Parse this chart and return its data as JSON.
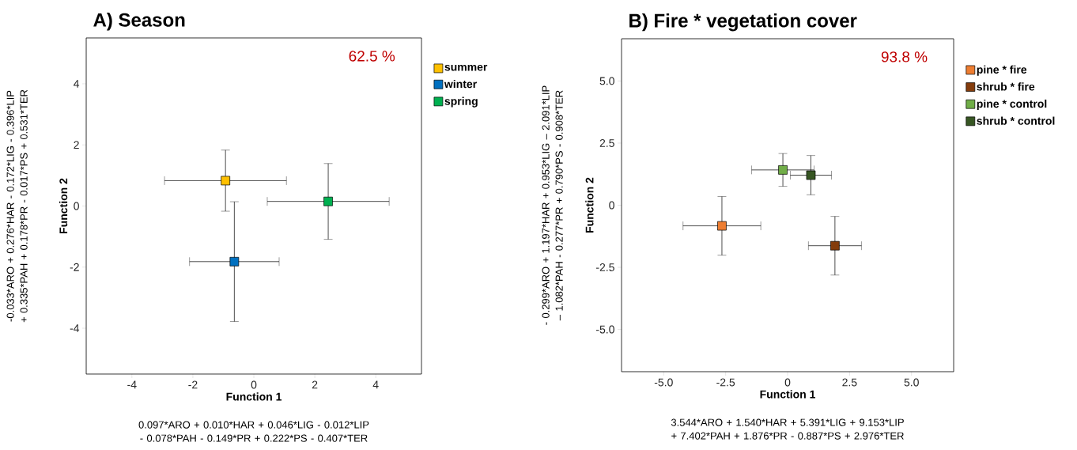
{
  "chart_data": [
    {
      "type": "scatter",
      "title": "A) Season",
      "xlabel": "Function 1",
      "ylabel": "Function 2",
      "marker": "square",
      "legend": "right",
      "grid": false,
      "xlim": [
        -5.5,
        5.5
      ],
      "ylim": [
        -5.5,
        5.5
      ],
      "xticks": [
        -4,
        -2,
        0,
        2,
        4
      ],
      "yticks": [
        -4,
        -2,
        0,
        2,
        4
      ],
      "annotations": [
        "62.5 %",
        "0.097*ARO + 0.010*HAR + 0.046*LIG - 0.012*LIP - 0.078*PAH - 0.149*PR + 0.222*PS - 0.407*TER",
        "-0.033*ARO + 0.276*HAR - 0.172*LIG - 0.396*LIP + 0.335*PAH + 0.178*PR - 0.017*PS + 0.531*TER"
      ],
      "series": [
        {
          "name": "summer",
          "color": "#ffc000",
          "x": [
            -0.93
          ],
          "values": [
            0.83
          ],
          "xerrors": [
            2.0
          ],
          "errors": [
            1.0
          ]
        },
        {
          "name": "winter",
          "color": "#0070c0",
          "x": [
            -0.64
          ],
          "values": [
            -1.82
          ],
          "xerrors": [
            1.47
          ],
          "errors": [
            1.96
          ]
        },
        {
          "name": "spring",
          "color": "#00b050",
          "x": [
            2.44
          ],
          "values": [
            0.15
          ],
          "xerrors": [
            2.0
          ],
          "errors": [
            1.24
          ]
        }
      ]
    },
    {
      "type": "scatter",
      "title": "B) Fire * vegetation cover",
      "xlabel": "Function 1",
      "ylabel": "Function 2",
      "marker": "square",
      "legend": "right",
      "grid": false,
      "xlim": [
        -6.7,
        6.7
      ],
      "ylim": [
        -6.7,
        6.7
      ],
      "xticks": [
        {
          "value": -5,
          "label": "-5.0"
        },
        {
          "value": -2.5,
          "label": "-2.5"
        },
        0,
        {
          "value": 2.5,
          "label": "2.5"
        },
        {
          "value": 5,
          "label": "5.0"
        }
      ],
      "yticks": [
        {
          "value": -5,
          "label": "-5.0"
        },
        {
          "value": -2.5,
          "label": "-2.5"
        },
        0,
        {
          "value": 2.5,
          "label": "2.5"
        },
        {
          "value": 5,
          "label": "5.0"
        }
      ],
      "annotations": [
        "93.8 %",
        "3.544*ARO + 1.540*HAR + 5.391*LIG  + 9.153*LIP + 7.402*PAH + 1.876*PR - 0.887*PS + 2.976*TER",
        "- 0.299*ARO + 1.197*HAR + 0.953*LIG – 2.091*LIP – 1.082*PAH - 0.277*PR + 0.790*PS - 0.908*TER"
      ],
      "series": [
        {
          "name": "pine * fire",
          "color": "#ed7d31",
          "x": [
            -2.65
          ],
          "values": [
            -0.83
          ],
          "xerrors": [
            1.57
          ],
          "errors": [
            1.18
          ]
        },
        {
          "name": "shrub * fire",
          "color": "#843c0c",
          "x": [
            1.91
          ],
          "values": [
            -1.63
          ],
          "xerrors": [
            1.07
          ],
          "errors": [
            1.18
          ]
        },
        {
          "name": "pine * control",
          "color": "#70ad47",
          "x": [
            -0.19
          ],
          "values": [
            1.42
          ],
          "xerrors": [
            1.26
          ],
          "errors": [
            0.66
          ]
        },
        {
          "name": "shrub * control",
          "color": "#375623",
          "x": [
            0.94
          ],
          "values": [
            1.21
          ],
          "xerrors": [
            0.83
          ],
          "errors": [
            0.79
          ]
        }
      ]
    }
  ]
}
